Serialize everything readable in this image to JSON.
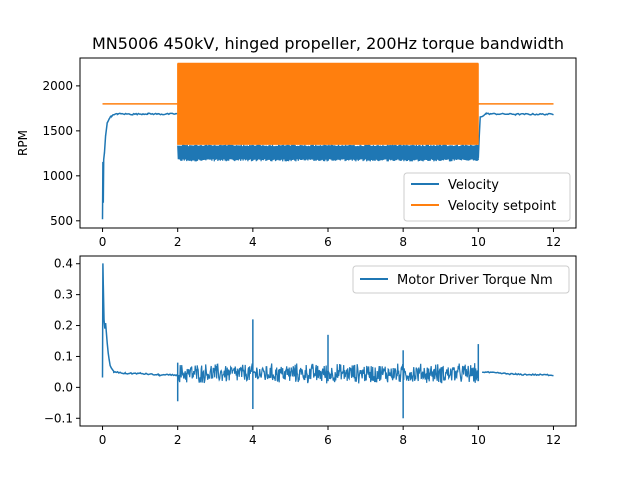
{
  "chart_data": [
    {
      "type": "line",
      "title": "MN5006 450kV, hinged propeller, 200Hz torque bandwidth",
      "xlabel": "",
      "ylabel": "RPM",
      "xlim": [
        -0.6,
        12.6
      ],
      "ylim": [
        420,
        2310
      ],
      "xticks": [
        0,
        2,
        4,
        6,
        8,
        10,
        12
      ],
      "xtick_labels": [
        "0",
        "2",
        "4",
        "6",
        "8",
        "10",
        "12"
      ],
      "yticks": [
        500,
        1000,
        1500,
        2000
      ],
      "ytick_labels": [
        "500",
        "1000",
        "1500",
        "2000"
      ],
      "grid": false,
      "legend_position": "lower-right",
      "series": [
        {
          "name": "Velocity",
          "color": "#1f77b4",
          "points": [
            [
              0.0,
              520
            ],
            [
              0.01,
              1150
            ],
            [
              0.02,
              700
            ],
            [
              0.03,
              1180
            ],
            [
              0.05,
              1250
            ],
            [
              0.08,
              1450
            ],
            [
              0.12,
              1580
            ],
            [
              0.18,
              1640
            ],
            [
              0.25,
              1670
            ],
            [
              0.4,
              1690
            ],
            [
              0.8,
              1685
            ],
            [
              1.2,
              1690
            ],
            [
              1.6,
              1685
            ],
            [
              1.99,
              1690
            ]
          ],
          "oscillation": {
            "x_range": [
              2.0,
              10.0
            ],
            "min": 1160,
            "max": 1350
          },
          "tail": [
            [
              10.0,
              1200
            ],
            [
              10.05,
              1650
            ],
            [
              10.2,
              1690
            ],
            [
              11.0,
              1685
            ],
            [
              12.0,
              1685
            ]
          ]
        },
        {
          "name": "Velocity setpoint",
          "color": "#ff7f0e",
          "points": [
            [
              0.0,
              1800
            ],
            [
              1.99,
              1800
            ]
          ],
          "square_wave": {
            "x_range": [
              2.0,
              10.0
            ],
            "low": 1350,
            "high": 2250,
            "frequency_hz": 200
          },
          "tail": [
            [
              10.0,
              1800
            ],
            [
              12.0,
              1800
            ]
          ]
        }
      ]
    },
    {
      "type": "line",
      "title": "",
      "xlabel": "",
      "ylabel": "",
      "xlim": [
        -0.6,
        12.6
      ],
      "ylim": [
        -0.125,
        0.425
      ],
      "xticks": [
        0,
        2,
        4,
        6,
        8,
        10,
        12
      ],
      "xtick_labels": [
        "0",
        "2",
        "4",
        "6",
        "8",
        "10",
        "12"
      ],
      "yticks": [
        -0.1,
        0.0,
        0.1,
        0.2,
        0.3,
        0.4
      ],
      "ytick_labels": [
        "−0.1",
        "0.0",
        "0.1",
        "0.2",
        "0.3",
        "0.4"
      ],
      "grid": false,
      "legend_position": "upper-right",
      "series": [
        {
          "name": "Motor Driver Torque Nm",
          "color": "#1f77b4",
          "points": [
            [
              0.0,
              0.03
            ],
            [
              0.01,
              0.4
            ],
            [
              0.02,
              0.33
            ],
            [
              0.04,
              0.22
            ],
            [
              0.06,
              0.19
            ],
            [
              0.08,
              0.21
            ],
            [
              0.1,
              0.18
            ],
            [
              0.15,
              0.11
            ],
            [
              0.2,
              0.07
            ],
            [
              0.3,
              0.05
            ],
            [
              0.6,
              0.045
            ],
            [
              1.0,
              0.045
            ],
            [
              1.5,
              0.04
            ],
            [
              1.99,
              0.04
            ]
          ],
          "noise_band": {
            "x_range": [
              2.0,
              10.0
            ],
            "center": 0.045,
            "amplitude": 0.03
          },
          "spikes": [
            {
              "x": 2.0,
              "min": -0.045,
              "max": 0.08
            },
            {
              "x": 4.0,
              "min": -0.07,
              "max": 0.22
            },
            {
              "x": 6.0,
              "min": 0.02,
              "max": 0.17
            },
            {
              "x": 8.0,
              "min": -0.1,
              "max": 0.12
            },
            {
              "x": 10.0,
              "min": 0.02,
              "max": 0.14
            }
          ],
          "tail": [
            [
              10.1,
              0.05
            ],
            [
              11.0,
              0.042
            ],
            [
              12.0,
              0.04
            ]
          ]
        }
      ]
    }
  ]
}
